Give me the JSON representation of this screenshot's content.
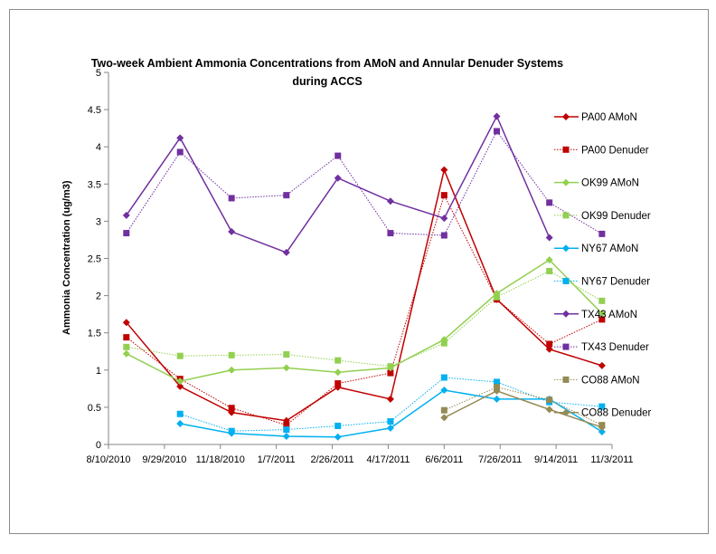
{
  "chart_data": {
    "type": "line",
    "title": "Two-week Ambient Ammonia Concentrations from AMoN and Annular Denuder Systems",
    "title_line2": "during ACCS",
    "xlabel": "",
    "ylabel": "Ammonia Concentration (ug/m3)",
    "ylim": [
      0,
      5
    ],
    "yticks": [
      "0",
      "0.5",
      "1",
      "1.5",
      "2",
      "2.5",
      "3",
      "3.5",
      "4",
      "4.5",
      "5"
    ],
    "xlim": [
      "2010-08-10",
      "2011-11-03"
    ],
    "xticks": [
      "8/10/2010",
      "9/29/2010",
      "11/18/2010",
      "1/7/2011",
      "2/26/2011",
      "4/17/2011",
      "6/6/2011",
      "7/26/2011",
      "9/14/2011",
      "11/3/2011"
    ],
    "grid": false,
    "legend": "right",
    "x": [
      "2010-08-26",
      "2010-10-13",
      "2010-11-28",
      "2011-01-16",
      "2011-03-03",
      "2011-04-19",
      "2011-06-06",
      "2011-07-23",
      "2011-09-08",
      "2011-10-25"
    ],
    "series": [
      {
        "name": "PA00 AMoN",
        "color": "#c00000",
        "style": "solid",
        "marker": "diamond",
        "values": [
          1.64,
          0.78,
          0.43,
          0.32,
          0.77,
          0.61,
          3.69,
          1.95,
          1.28,
          1.06
        ]
      },
      {
        "name": "PA00 Denuder",
        "color": "#c00000",
        "style": "dotted",
        "marker": "square",
        "values": [
          1.44,
          0.88,
          0.49,
          0.26,
          0.82,
          0.96,
          3.35,
          1.95,
          1.35,
          1.68
        ]
      },
      {
        "name": "OK99 AMoN",
        "color": "#92d050",
        "style": "solid",
        "marker": "diamond",
        "values": [
          1.22,
          0.85,
          1.0,
          1.03,
          0.97,
          1.03,
          1.41,
          2.03,
          2.48,
          1.76
        ]
      },
      {
        "name": "OK99 Denuder",
        "color": "#92d050",
        "style": "dotted",
        "marker": "square",
        "values": [
          1.31,
          1.19,
          1.2,
          1.21,
          1.13,
          1.05,
          1.36,
          1.98,
          2.33,
          1.93
        ]
      },
      {
        "name": "NY67 AMoN",
        "color": "#00b0f0",
        "style": "solid",
        "marker": "diamond",
        "values": [
          null,
          0.28,
          0.15,
          0.11,
          0.1,
          0.22,
          0.73,
          0.61,
          0.61,
          0.17
        ]
      },
      {
        "name": "NY67 Denuder",
        "color": "#00b0f0",
        "style": "dotted",
        "marker": "square",
        "values": [
          null,
          0.41,
          0.18,
          0.2,
          0.25,
          0.31,
          0.9,
          0.84,
          0.57,
          0.51
        ]
      },
      {
        "name": "TX43 AMoN",
        "color": "#7030a0",
        "style": "solid",
        "marker": "diamond",
        "values": [
          3.08,
          4.12,
          2.86,
          2.58,
          3.58,
          3.27,
          3.04,
          4.41,
          2.78,
          null
        ]
      },
      {
        "name": "TX43 Denuder",
        "color": "#7030a0",
        "style": "dotted",
        "marker": "square",
        "values": [
          2.84,
          3.93,
          3.31,
          3.35,
          3.88,
          2.84,
          2.81,
          4.21,
          3.25,
          2.83
        ]
      },
      {
        "name": "CO88 AMoN",
        "color": "#948a54",
        "style": "dotted",
        "marker": "square",
        "values": [
          null,
          null,
          null,
          null,
          null,
          null,
          0.46,
          0.77,
          0.6,
          0.26
        ]
      },
      {
        "name": "CO88 Denuder",
        "color": "#948a54",
        "style": "solid",
        "marker": "diamond",
        "values": [
          null,
          null,
          null,
          null,
          null,
          null,
          0.36,
          0.72,
          0.47,
          0.23
        ]
      }
    ]
  }
}
